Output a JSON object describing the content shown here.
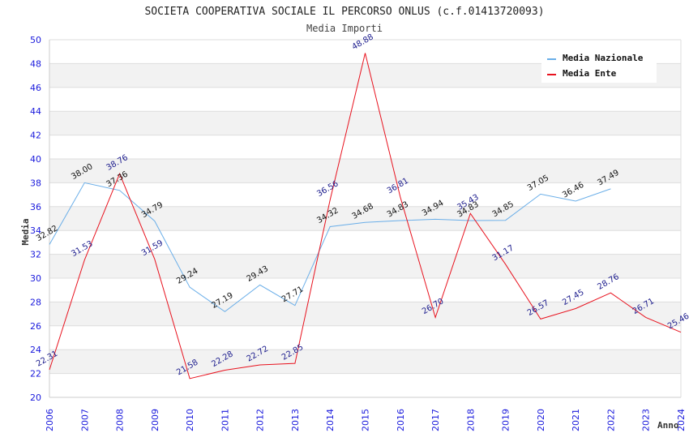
{
  "chart_data": {
    "type": "line",
    "title": "SOCIETA COOPERATIVA SOCIALE IL PERCORSO ONLUS (c.f.01413720093)",
    "subtitle": "Media Importi",
    "xlabel": "Anno",
    "ylabel": "Media",
    "ylim": [
      20,
      50
    ],
    "yticks": [
      "20",
      "22",
      "24",
      "26",
      "28",
      "30",
      "32",
      "34",
      "36",
      "38",
      "40",
      "42",
      "44",
      "46",
      "48",
      "50"
    ],
    "categories": [
      "2006",
      "2007",
      "2008",
      "2009",
      "2010",
      "2011",
      "2012",
      "2013",
      "2014",
      "2015",
      "2016",
      "2017",
      "2018",
      "2019",
      "2020",
      "2021",
      "2022",
      "2023",
      "2024"
    ],
    "grid": true,
    "legend_position": "top-right",
    "series": [
      {
        "name": "Media Nazionale",
        "color": "#6aaee8",
        "values": [
          32.82,
          38.0,
          37.36,
          34.79,
          29.24,
          27.19,
          29.43,
          27.71,
          34.32,
          34.68,
          34.83,
          34.94,
          34.83,
          34.85,
          37.05,
          36.46,
          37.49,
          null,
          null
        ],
        "labels": [
          "32.82",
          "38.00",
          "37.36",
          "34.79",
          "29.24",
          "27.19",
          "29.43",
          "27.71",
          "34.32",
          "34.68",
          "34.83",
          "34.94",
          "34.83",
          "34.85",
          "37.05",
          "36.46",
          "37.49",
          null,
          null
        ]
      },
      {
        "name": "Media Ente",
        "color": "#e8121e",
        "values": [
          22.31,
          31.53,
          38.76,
          31.59,
          21.58,
          22.28,
          22.72,
          22.85,
          36.56,
          48.88,
          36.81,
          26.7,
          35.43,
          31.17,
          26.57,
          27.45,
          28.76,
          26.71,
          25.46
        ],
        "labels": [
          "22.31",
          "31.53",
          "38.76",
          "31.59",
          "21.58",
          "22.28",
          "22.72",
          "22.85",
          "36.56",
          "48.88",
          "36.81",
          "26.70",
          "35.43",
          "31.17",
          "26.57",
          "27.45",
          "28.76",
          "26.71",
          "25.46"
        ]
      }
    ]
  }
}
